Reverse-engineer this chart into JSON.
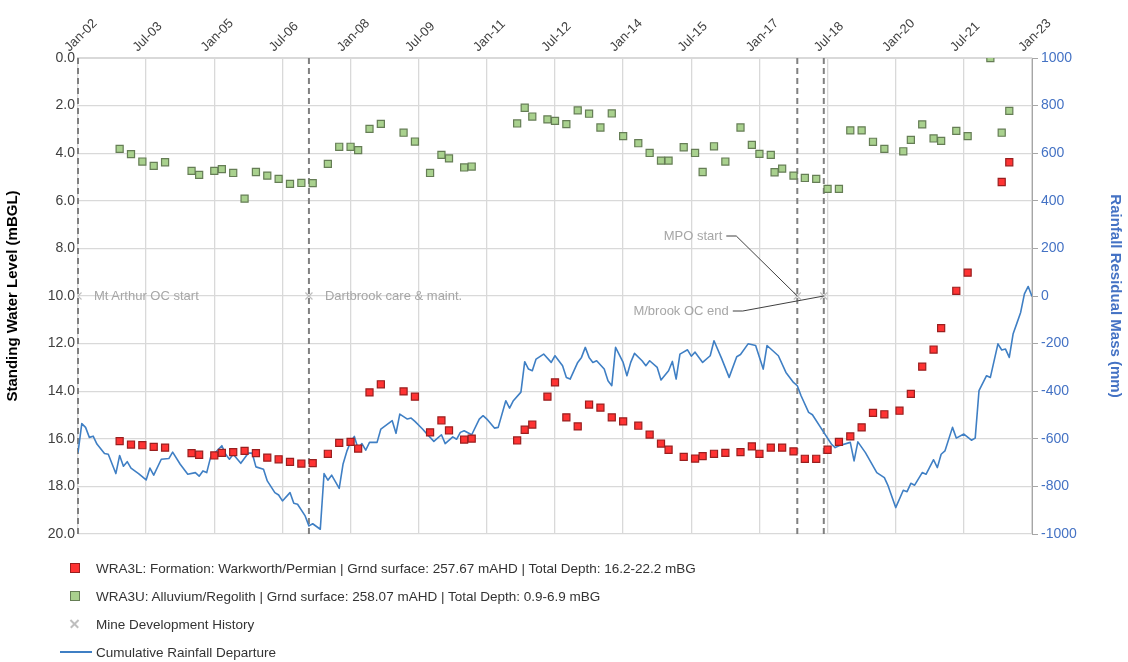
{
  "chart_data": {
    "type": "scatter",
    "ylabel": "Standing Water Level (mBGL)",
    "y2label": "Rainfall Residual Mass (mm)",
    "xlim": [
      "2002-01",
      "2023-01"
    ],
    "xticks": [
      {
        "value": "2002-01",
        "label": "Jan-02"
      },
      {
        "value": "2003-07",
        "label": "Jul-03"
      },
      {
        "value": "2005-01",
        "label": "Jan-05"
      },
      {
        "value": "2006-07",
        "label": "Jul-06"
      },
      {
        "value": "2008-01",
        "label": "Jan-08"
      },
      {
        "value": "2009-07",
        "label": "Jul-09"
      },
      {
        "value": "2011-01",
        "label": "Jan-11"
      },
      {
        "value": "2012-07",
        "label": "Jul-12"
      },
      {
        "value": "2014-01",
        "label": "Jan-14"
      },
      {
        "value": "2015-07",
        "label": "Jul-15"
      },
      {
        "value": "2017-01",
        "label": "Jan-17"
      },
      {
        "value": "2018-07",
        "label": "Jul-18"
      },
      {
        "value": "2020-01",
        "label": "Jan-20"
      },
      {
        "value": "2021-07",
        "label": "Jul-21"
      },
      {
        "value": "2023-01",
        "label": "Jan-23"
      }
    ],
    "ylim": [
      20,
      0
    ],
    "yticks": [
      {
        "value": 0,
        "label": "0.0"
      },
      {
        "value": 2,
        "label": "2.0"
      },
      {
        "value": 4,
        "label": "4.0"
      },
      {
        "value": 6,
        "label": "6.0"
      },
      {
        "value": 8,
        "label": "8.0"
      },
      {
        "value": 10,
        "label": "10.0"
      },
      {
        "value": 12,
        "label": "12.0"
      },
      {
        "value": 14,
        "label": "14.0"
      },
      {
        "value": 16,
        "label": "16.0"
      },
      {
        "value": 18,
        "label": "18.0"
      },
      {
        "value": 20,
        "label": "20.0"
      }
    ],
    "y2lim": [
      -1000,
      1000
    ],
    "y2ticks": [
      -1000,
      -800,
      -600,
      -400,
      -200,
      0,
      200,
      400,
      600,
      800,
      1000
    ],
    "grid": true,
    "legend": "bottom",
    "series": [
      {
        "name": "WRA3L: Formation: Warkworth/Permian | Grnd surface: 257.67 mAHD | Total Depth: 16.2-22.2 mBG",
        "type": "scatter",
        "marker": "square",
        "color": "#ff3333",
        "x": [
          "2002-12",
          "2003-03",
          "2003-06",
          "2003-09",
          "2003-12",
          "2004-07",
          "2004-09",
          "2005-01",
          "2005-03",
          "2005-06",
          "2005-09",
          "2005-12",
          "2006-03",
          "2006-06",
          "2006-09",
          "2006-12",
          "2007-03",
          "2007-07",
          "2007-10",
          "2008-01",
          "2008-03",
          "2008-06",
          "2008-09",
          "2009-03",
          "2009-06",
          "2009-10",
          "2010-01",
          "2010-03",
          "2010-07",
          "2010-09",
          "2011-09",
          "2011-11",
          "2012-01",
          "2012-05",
          "2012-07",
          "2012-10",
          "2013-01",
          "2013-04",
          "2013-07",
          "2013-10",
          "2014-01",
          "2014-05",
          "2014-08",
          "2014-11",
          "2015-01",
          "2015-05",
          "2015-08",
          "2015-10",
          "2016-01",
          "2016-04",
          "2016-08",
          "2016-11",
          "2017-01",
          "2017-04",
          "2017-07",
          "2017-10",
          "2018-01",
          "2018-04",
          "2018-07",
          "2018-10",
          "2019-01",
          "2019-04",
          "2019-07",
          "2019-10",
          "2020-02",
          "2020-05",
          "2020-08",
          "2020-11",
          "2021-01",
          "2021-05",
          "2021-08",
          "2022-05",
          "2022-07"
        ],
        "values": [
          16.1,
          16.24,
          16.27,
          16.34,
          16.37,
          16.6,
          16.67,
          16.7,
          16.59,
          16.56,
          16.51,
          16.6,
          16.79,
          16.86,
          16.97,
          17.04,
          17.02,
          16.63,
          16.17,
          16.13,
          16.41,
          14.05,
          13.71,
          14.01,
          14.23,
          15.73,
          15.23,
          15.65,
          16.03,
          15.99,
          16.07,
          15.62,
          15.4,
          14.23,
          13.63,
          15.1,
          15.48,
          14.56,
          14.69,
          15.1,
          15.27,
          15.45,
          15.82,
          16.2,
          16.46,
          16.76,
          16.83,
          16.73,
          16.63,
          16.59,
          16.56,
          16.32,
          16.63,
          16.37,
          16.37,
          16.53,
          16.84,
          16.84,
          16.46,
          16.13,
          15.9,
          15.52,
          14.91,
          14.97,
          14.82,
          14.11,
          12.97,
          12.25,
          11.35,
          9.78,
          9.02,
          5.21,
          4.38
        ]
      },
      {
        "name": "WRA3U: Alluvium/Regolith | Grnd surface: 258.07 mAHD | Total Depth: 0.9-6.9 mBG",
        "type": "scatter",
        "marker": "square",
        "color": "#a9d18e",
        "x": [
          "2002-12",
          "2003-03",
          "2003-06",
          "2003-09",
          "2003-12",
          "2004-07",
          "2004-09",
          "2005-01",
          "2005-03",
          "2005-06",
          "2005-09",
          "2005-12",
          "2006-03",
          "2006-06",
          "2006-09",
          "2006-12",
          "2007-03",
          "2007-07",
          "2007-10",
          "2008-01",
          "2008-03",
          "2008-06",
          "2008-09",
          "2009-03",
          "2009-06",
          "2009-10",
          "2010-01",
          "2010-03",
          "2010-07",
          "2010-09",
          "2011-09",
          "2011-11",
          "2012-01",
          "2012-05",
          "2012-07",
          "2012-10",
          "2013-01",
          "2013-04",
          "2013-07",
          "2013-10",
          "2014-01",
          "2014-05",
          "2014-08",
          "2014-11",
          "2015-01",
          "2015-05",
          "2015-08",
          "2015-10",
          "2016-01",
          "2016-04",
          "2016-08",
          "2016-11",
          "2017-01",
          "2017-04",
          "2017-05",
          "2017-07",
          "2017-10",
          "2018-01",
          "2018-04",
          "2018-07",
          "2018-10",
          "2019-01",
          "2019-04",
          "2019-07",
          "2019-10",
          "2020-03",
          "2020-05",
          "2020-08",
          "2020-11",
          "2021-01",
          "2021-05",
          "2021-08",
          "2022-02",
          "2022-05",
          "2022-07"
        ],
        "values": [
          3.82,
          4.04,
          4.35,
          4.53,
          4.38,
          4.74,
          4.91,
          4.74,
          4.67,
          4.83,
          5.91,
          4.79,
          4.94,
          5.08,
          5.29,
          5.25,
          5.26,
          4.45,
          3.73,
          3.73,
          3.87,
          2.98,
          2.77,
          3.14,
          3.51,
          4.83,
          4.07,
          4.22,
          4.6,
          4.56,
          2.75,
          2.09,
          2.46,
          2.58,
          2.64,
          2.78,
          2.2,
          2.34,
          2.92,
          2.33,
          3.28,
          3.58,
          3.99,
          4.31,
          4.31,
          3.75,
          3.99,
          4.79,
          3.71,
          4.35,
          2.92,
          3.65,
          4.03,
          4.07,
          4.8,
          4.65,
          4.94,
          5.04,
          5.08,
          5.5,
          5.5,
          3.04,
          3.04,
          3.52,
          3.82,
          3.92,
          3.44,
          2.79,
          3.38,
          3.48,
          3.06,
          3.28,
          0.0,
          3.14,
          2.22
        ]
      },
      {
        "name": "Mine Development History",
        "type": "scatter",
        "marker": "cross",
        "color": "#bfbfbf",
        "x": [
          "2002-01",
          "2007-02",
          "2017-11",
          "2018-06"
        ],
        "values": [
          10,
          10,
          10,
          10
        ]
      },
      {
        "name": "Cumulative Rainfall Departure",
        "type": "line",
        "marker": "none",
        "axis": "y2",
        "color": "#3f7fc4",
        "x": [
          "2002-01",
          "2002-02",
          "2002-03",
          "2002-04",
          "2002-05",
          "2002-06",
          "2002-08",
          "2002-09",
          "2002-11",
          "2002-12",
          "2003-01",
          "2003-02",
          "2003-03",
          "2003-05",
          "2003-07",
          "2003-08",
          "2003-09",
          "2003-11",
          "2004-01",
          "2004-02",
          "2004-04",
          "2004-06",
          "2004-08",
          "2004-09",
          "2004-10",
          "2004-11",
          "2004-12",
          "2005-03",
          "2005-04",
          "2005-05",
          "2005-06",
          "2005-08",
          "2005-10",
          "2005-11",
          "2005-12",
          "2006-02",
          "2006-03",
          "2006-05",
          "2006-06",
          "2006-07",
          "2006-09",
          "2006-10",
          "2006-11",
          "2007-01",
          "2007-02",
          "2007-03",
          "2007-05",
          "2007-06",
          "2007-07",
          "2007-08",
          "2007-10",
          "2007-11",
          "2007-12",
          "2008-01",
          "2008-02",
          "2008-03",
          "2008-04",
          "2008-05",
          "2008-06",
          "2008-08",
          "2008-09",
          "2008-12",
          "2009-01",
          "2009-02",
          "2009-04",
          "2009-05",
          "2009-06",
          "2009-08",
          "2009-09",
          "2009-11",
          "2010-01",
          "2010-02",
          "2010-04",
          "2010-05",
          "2010-06",
          "2010-07",
          "2010-09",
          "2010-11",
          "2010-12",
          "2011-01",
          "2011-03",
          "2011-04",
          "2011-06",
          "2011-07",
          "2011-08",
          "2011-10",
          "2011-11",
          "2011-12",
          "2012-01",
          "2012-02",
          "2012-04",
          "2012-06",
          "2012-07",
          "2012-09",
          "2012-10",
          "2012-11",
          "2013-01",
          "2013-02",
          "2013-03",
          "2013-04",
          "2013-05",
          "2013-06",
          "2013-08",
          "2013-09",
          "2013-10",
          "2013-11",
          "2014-01",
          "2014-02",
          "2014-03",
          "2014-04",
          "2014-06",
          "2014-07",
          "2014-08",
          "2014-10",
          "2014-11",
          "2015-01",
          "2015-02",
          "2015-03",
          "2015-04",
          "2015-06",
          "2015-07",
          "2015-08",
          "2015-10",
          "2015-12",
          "2016-01",
          "2016-03",
          "2016-05",
          "2016-07",
          "2016-08",
          "2016-10",
          "2016-12",
          "2017-02",
          "2017-03",
          "2017-06",
          "2017-08",
          "2017-10",
          "2017-11",
          "2017-12",
          "2018-02",
          "2018-03",
          "2018-06",
          "2018-08",
          "2018-09",
          "2018-10",
          "2019-01",
          "2019-02",
          "2019-03",
          "2019-05",
          "2019-08",
          "2019-10",
          "2019-11",
          "2020-01",
          "2020-03",
          "2020-04",
          "2020-05",
          "2020-06",
          "2020-08",
          "2020-09",
          "2020-11",
          "2020-12",
          "2021-01",
          "2021-02",
          "2021-04",
          "2021-05",
          "2021-07",
          "2021-09",
          "2021-10",
          "2021-11",
          "2022-01",
          "2022-02",
          "2022-04",
          "2022-05",
          "2022-06",
          "2022-07",
          "2022-08",
          "2022-10",
          "2022-11",
          "2022-12",
          "2023-01"
        ],
        "values": [
          -658,
          -536,
          -552,
          -594,
          -589,
          -622,
          -662,
          -665,
          -746,
          -670,
          -715,
          -696,
          -723,
          -746,
          -773,
          -723,
          -753,
          -686,
          -683,
          -656,
          -707,
          -749,
          -742,
          -757,
          -735,
          -742,
          -679,
          -629,
          -665,
          -686,
          -665,
          -703,
          -660,
          -660,
          -718,
          -728,
          -777,
          -826,
          -836,
          -861,
          -826,
          -871,
          -875,
          -924,
          -966,
          -957,
          -980,
          -746,
          -774,
          -753,
          -808,
          -707,
          -653,
          -613,
          -590,
          -643,
          -620,
          -648,
          -615,
          -615,
          -559,
          -524,
          -577,
          -496,
          -517,
          -513,
          -527,
          -559,
          -577,
          -611,
          -583,
          -620,
          -592,
          -602,
          -573,
          -566,
          -583,
          -517,
          -503,
          -517,
          -555,
          -552,
          -440,
          -471,
          -440,
          -404,
          -276,
          -307,
          -314,
          -265,
          -244,
          -279,
          -251,
          -293,
          -342,
          -349,
          -279,
          -258,
          -216,
          -258,
          -279,
          -272,
          -307,
          -356,
          -377,
          -216,
          -279,
          -335,
          -279,
          -241,
          -272,
          -293,
          -272,
          -300,
          -353,
          -314,
          -275,
          -349,
          -244,
          -226,
          -253,
          -236,
          -279,
          -251,
          -188,
          -262,
          -342,
          -255,
          -246,
          -201,
          -208,
          -307,
          -208,
          -251,
          -321,
          -363,
          -377,
          -419,
          -489,
          -499,
          -573,
          -622,
          -637,
          -629,
          -615,
          -693,
          -613,
          -658,
          -742,
          -763,
          -798,
          -889,
          -816,
          -822,
          -787,
          -795,
          -742,
          -749,
          -688,
          -721,
          -665,
          -651,
          -552,
          -597,
          -580,
          -606,
          -597,
          -398,
          -335,
          -342,
          -201,
          -227,
          -223,
          -258,
          -160,
          -69,
          9,
          40,
          -2
        ]
      }
    ],
    "ref_lines": [
      {
        "axis": "x",
        "value": "2002-01",
        "color": "#808080",
        "line_style": "dashed"
      },
      {
        "axis": "x",
        "value": "2007-02",
        "color": "#808080",
        "line_style": "dashed"
      },
      {
        "axis": "x",
        "value": "2017-11",
        "color": "#808080",
        "line_style": "dashed"
      },
      {
        "axis": "x",
        "value": "2018-06",
        "color": "#808080",
        "line_style": "dashed"
      }
    ],
    "annotations": [
      {
        "text": "Mt Arthur OC start",
        "x": "2002-01",
        "y": 10
      },
      {
        "text": "Dartbrook care & maint.",
        "x": "2007-02",
        "y": 10
      },
      {
        "text": "MPO start",
        "x": "2017-11",
        "y": 10
      },
      {
        "text": "M/brook OC end",
        "x": "2018-06",
        "y": 10
      }
    ]
  }
}
